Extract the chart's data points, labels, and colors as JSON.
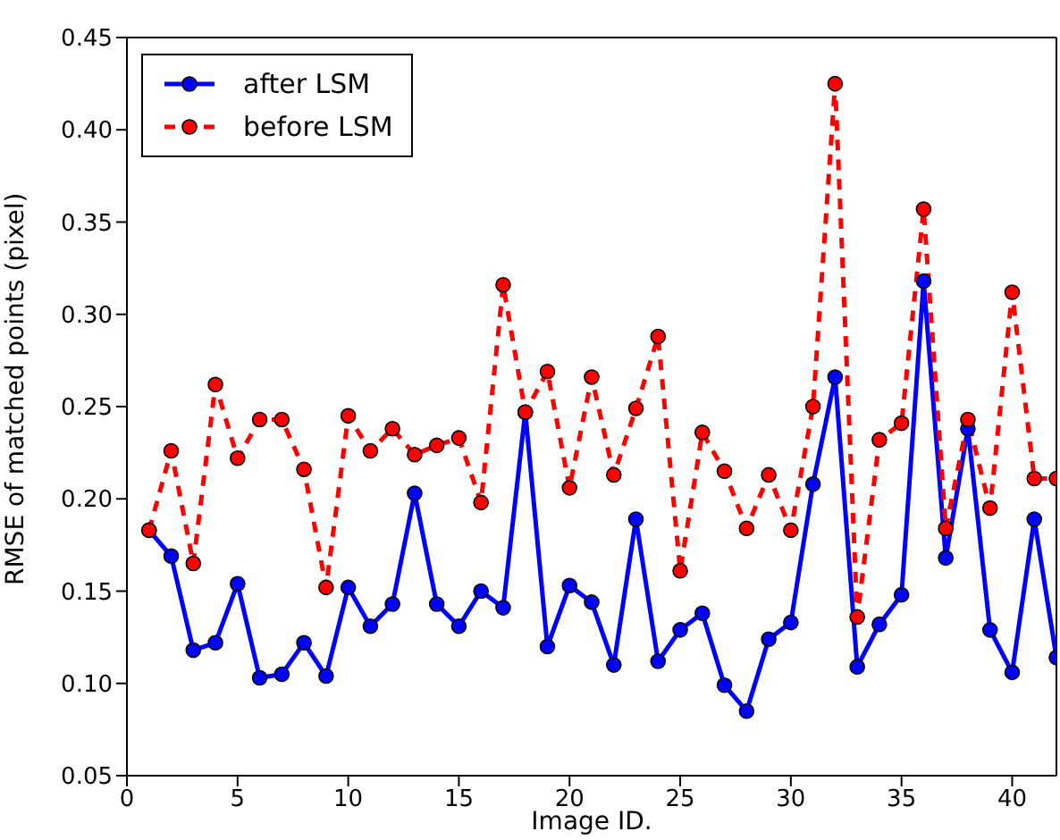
{
  "chart_data": {
    "type": "line",
    "xlabel": "Image ID.",
    "ylabel": "RMSE of matched points (pixel)",
    "x": [
      1,
      2,
      3,
      4,
      5,
      6,
      7,
      8,
      9,
      10,
      11,
      12,
      13,
      14,
      15,
      16,
      17,
      18,
      19,
      20,
      21,
      22,
      23,
      24,
      25,
      26,
      27,
      28,
      29,
      30,
      31,
      32,
      33,
      34,
      35,
      36,
      37,
      38,
      39,
      40,
      41,
      42
    ],
    "series": [
      {
        "name": "after LSM",
        "color": "#0000ff",
        "line_style": "solid",
        "marker": "circle",
        "values": [
          0.183,
          0.169,
          0.118,
          0.122,
          0.154,
          0.103,
          0.105,
          0.122,
          0.104,
          0.152,
          0.131,
          0.143,
          0.203,
          0.143,
          0.131,
          0.15,
          0.141,
          0.247,
          0.12,
          0.153,
          0.144,
          0.11,
          0.189,
          0.112,
          0.129,
          0.138,
          0.099,
          0.085,
          0.124,
          0.133,
          0.208,
          0.266,
          0.109,
          0.132,
          0.148,
          0.318,
          0.168,
          0.238,
          0.129,
          0.106,
          0.189,
          0.114
        ]
      },
      {
        "name": "before LSM",
        "color": "#ff0000",
        "line_style": "dashed",
        "marker": "circle",
        "values": [
          0.183,
          0.226,
          0.165,
          0.262,
          0.222,
          0.243,
          0.243,
          0.216,
          0.152,
          0.245,
          0.226,
          0.238,
          0.224,
          0.229,
          0.233,
          0.198,
          0.316,
          0.247,
          0.269,
          0.206,
          0.266,
          0.213,
          0.249,
          0.288,
          0.161,
          0.236,
          0.215,
          0.184,
          0.213,
          0.183,
          0.25,
          0.425,
          0.136,
          0.232,
          0.241,
          0.357,
          0.184,
          0.243,
          0.195,
          0.312,
          0.211,
          0.211
        ]
      }
    ],
    "xlim": [
      0,
      42
    ],
    "xticks": [
      0,
      5,
      10,
      15,
      20,
      25,
      30,
      35,
      40
    ],
    "ylim": [
      0.05,
      0.45
    ],
    "yticks": [
      0.05,
      {
        "value": 0.1,
        "label": "0.10"
      },
      0.15,
      {
        "value": 0.2,
        "label": "0.20"
      },
      0.25,
      {
        "value": 0.3,
        "label": "0.30"
      },
      0.35,
      {
        "value": 0.4,
        "label": "0.40"
      },
      0.45
    ],
    "grid": false,
    "legend": "top left"
  }
}
